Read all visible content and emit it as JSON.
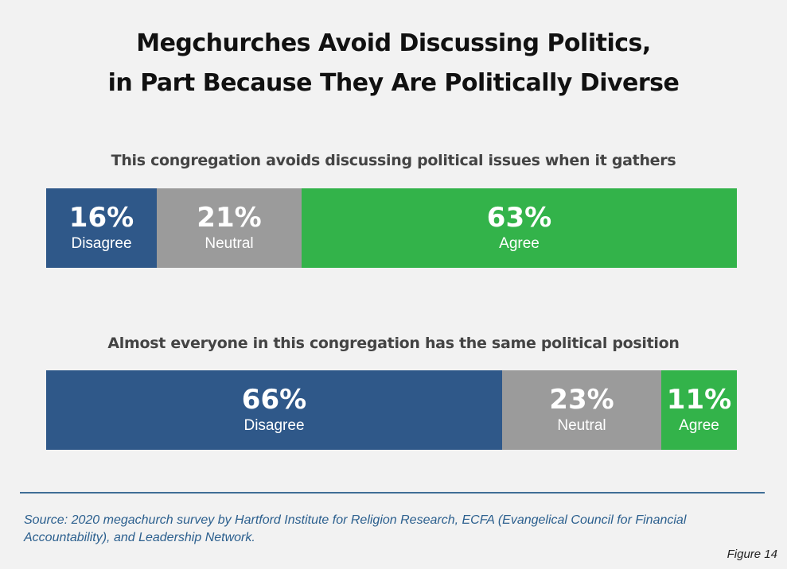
{
  "title_lines": [
    "Megchurches Avoid Discussing Politics,",
    "in Part Because They Are Politically Diverse"
  ],
  "colors": {
    "disagree": "#2f5889",
    "neutral": "#9b9b9b",
    "agree": "#33b34a"
  },
  "chart_data": [
    {
      "type": "bar",
      "orientation": "horizontal-stacked",
      "title": "This congregation avoids discussing political issues when it gathers",
      "categories": [
        "Disagree",
        "Neutral",
        "Agree"
      ],
      "values": [
        16,
        21,
        63
      ],
      "labels": [
        "16%",
        "21%",
        "63%"
      ]
    },
    {
      "type": "bar",
      "orientation": "horizontal-stacked",
      "title": "Almost everyone in this congregation has the same political position",
      "categories": [
        "Disagree",
        "Neutral",
        "Agree"
      ],
      "values": [
        66,
        23,
        11
      ],
      "labels": [
        "66%",
        "23%",
        "11%"
      ]
    }
  ],
  "source": "Source: 2020 megachurch survey by Hartford Institute for Religion Research, ECFA (Evangelical Council for Financial Accountability), and Leadership Network.",
  "figure_label": "Figure 14"
}
